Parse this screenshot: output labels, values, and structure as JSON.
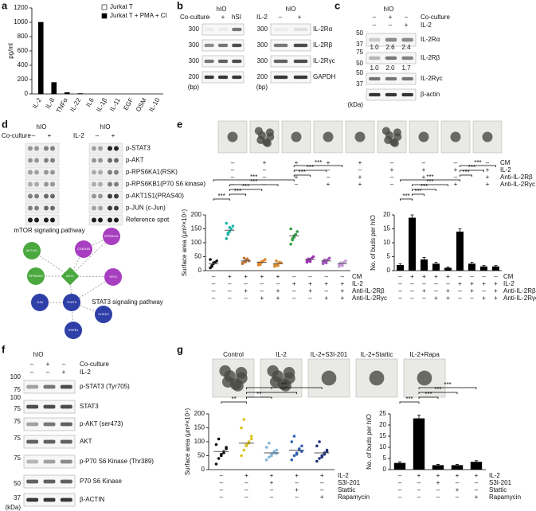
{
  "panel_labels": [
    "a",
    "b",
    "c",
    "d",
    "e",
    "f",
    "g"
  ],
  "a": {
    "type": "bar",
    "y_label": "pg/ml",
    "categories": [
      "IL-2",
      "IL-8",
      "TNFα",
      "IL-22",
      "IL6",
      "IL-1β",
      "IL-11",
      "EGF",
      "OSM",
      "IL-10"
    ],
    "series": [
      {
        "name": "Jurkat T",
        "color": "#ffffff",
        "values": [
          0,
          0,
          0,
          0,
          0,
          0,
          0,
          0,
          0,
          0
        ]
      },
      {
        "name": "Jurkat T + PMA + CI",
        "color": "#000000",
        "values": [
          1000,
          160,
          20,
          5,
          0,
          0,
          0,
          0,
          0,
          0
        ]
      }
    ],
    "ylim": [
      0,
      1200
    ],
    "yticks": [
      0,
      200,
      400,
      600,
      800,
      1000,
      1200
    ]
  },
  "b": {
    "left_header": "hIO",
    "right_header": "hIO",
    "left_row": "Co-culture",
    "left_signs": [
      "–",
      "+",
      "hSI"
    ],
    "right_row": "IL-2",
    "right_signs": [
      "–",
      "+"
    ],
    "markers": [
      "300",
      "300",
      "300",
      "200",
      "(bp)"
    ],
    "genes": [
      "IL-2Rα",
      "IL-2Rβ",
      "IL-2Rγc",
      "GAPDH"
    ]
  },
  "c": {
    "header": "hIO",
    "rows": [
      "Co-culture",
      "IL-2"
    ],
    "signs": [
      [
        "–",
        "+",
        "–"
      ],
      [
        "–",
        "–",
        "+"
      ]
    ],
    "markers": [
      "50",
      "37",
      "75",
      "50",
      "50",
      "37",
      "(kDa)"
    ],
    "proteins": [
      "IL-2Rα",
      "IL-2Rβ",
      "IL-2Rγc",
      "β-actin"
    ],
    "ratios": [
      [
        "1.0",
        "2.6",
        "2.4"
      ],
      [
        "1.0",
        "2.0",
        "1.7"
      ]
    ]
  },
  "d": {
    "headers": [
      "hIO",
      "hIO"
    ],
    "rows": [
      "Co-culture",
      "IL-2"
    ],
    "signs": [
      "–",
      "+"
    ],
    "spots": [
      "p-STAT3",
      "p-AKT",
      "p-RPS6KA1(RSK)",
      "p-RPS6KB1(P70 S6 kinase)",
      "p-AKT1S1(PRAS40)",
      "p-JUN (c-Jun)",
      "Reference spot"
    ],
    "nodes": [
      "RPS6KA1",
      "CDKN1B",
      "AKT1S1",
      "RPS6KB1",
      "AKT1",
      "YES1",
      "JUN",
      "STAT3",
      "CHEK2",
      "HSPB1"
    ],
    "pathways": [
      "mTOR signaling pathway",
      "STAT3 signaling pathway"
    ]
  },
  "e": {
    "conditions": [
      "CM",
      "IL-2",
      "Anti-IL-2Rβ",
      "Anti-IL-2Rγc"
    ],
    "signs": [
      [
        "–",
        "+",
        "+",
        "+",
        "+",
        "–",
        "–",
        "–",
        "–"
      ],
      [
        "–",
        "–",
        "–",
        "–",
        "–",
        "+",
        "+",
        "+",
        "+"
      ],
      [
        "–",
        "–",
        "+",
        "–",
        "+",
        "–",
        "+",
        "–",
        "+"
      ],
      [
        "–",
        "–",
        "–",
        "+",
        "+",
        "–",
        "–",
        "+",
        "+"
      ]
    ],
    "surface": {
      "y_label": "Surface area (μm²×10⁴)",
      "ylim": [
        0,
        200
      ],
      "yticks": [
        0,
        50,
        100,
        150,
        200
      ],
      "colors": [
        "#111111",
        "#1ab3a6",
        "#c0763a",
        "#e08a2c",
        "#d98a2a",
        "#2e9e3e",
        "#9b35b5",
        "#a356c0",
        "#c49ad6"
      ],
      "means": [
        25,
        145,
        35,
        30,
        25,
        125,
        40,
        35,
        25
      ],
      "points": [
        [
          10,
          18,
          25,
          30,
          35,
          40,
          15,
          28
        ],
        [
          115,
          130,
          140,
          150,
          160,
          170,
          135,
          155
        ],
        [
          25,
          30,
          38,
          42,
          35,
          28,
          45,
          32
        ],
        [
          20,
          25,
          30,
          35,
          40,
          28,
          22,
          33
        ],
        [
          15,
          20,
          25,
          30,
          28,
          22,
          35,
          18
        ],
        [
          95,
          110,
          120,
          130,
          140,
          150,
          115,
          125
        ],
        [
          30,
          35,
          40,
          45,
          50,
          38,
          42,
          33
        ],
        [
          25,
          30,
          35,
          40,
          45,
          32,
          38,
          28
        ],
        [
          15,
          20,
          25,
          30,
          35,
          22,
          28,
          18
        ]
      ],
      "sig": [
        [
          0,
          1,
          "***"
        ],
        [
          1,
          2,
          "***"
        ],
        [
          1,
          3,
          "***"
        ],
        [
          1,
          4,
          "***"
        ],
        [
          0,
          5,
          "***"
        ],
        [
          5,
          6,
          "***"
        ],
        [
          5,
          7,
          "***"
        ],
        [
          5,
          8,
          "***"
        ]
      ]
    },
    "buds": {
      "y_label": "No. of buds per hIO",
      "ylim": [
        0,
        20
      ],
      "yticks": [
        0,
        5,
        10,
        15,
        20
      ],
      "values": [
        2,
        19,
        4,
        2.5,
        1,
        14,
        2.5,
        1.5,
        1.5
      ],
      "errors": [
        0.5,
        1,
        0.7,
        0.5,
        0.3,
        1,
        0.5,
        0.3,
        0.3
      ],
      "sig": [
        [
          0,
          1,
          "***"
        ],
        [
          1,
          2,
          "***"
        ],
        [
          1,
          3,
          "***"
        ],
        [
          1,
          4,
          "***"
        ],
        [
          0,
          5,
          "***"
        ],
        [
          5,
          6,
          "***"
        ],
        [
          5,
          7,
          "***"
        ],
        [
          5,
          8,
          "***"
        ]
      ]
    }
  },
  "f": {
    "header": "hIO",
    "rows": [
      "Co-culture",
      "IL-2"
    ],
    "signs": [
      [
        "–",
        "+",
        "–"
      ],
      [
        "–",
        "–",
        "+"
      ]
    ],
    "markers": [
      "100",
      "75",
      "100",
      "75",
      "75",
      "75",
      "75",
      "50",
      "37",
      "(kDa)"
    ],
    "proteins": [
      "p-STAT3 (Tyr705)",
      "STAT3",
      "p-AKT (ser473)",
      "AKT",
      "p-P70 S6 Kinase (Thr389)",
      "P70 S6 Kinase",
      "β-ACTIN"
    ]
  },
  "g": {
    "images": [
      "Control",
      "IL-2",
      "IL-2+S3I-201",
      "IL-2+Stattic",
      "IL-2+Rapa"
    ],
    "conditions": [
      "IL-2",
      "S3I-201",
      "Stattic",
      "Rapamycin"
    ],
    "signs": [
      [
        "–",
        "+",
        "+",
        "+",
        "+"
      ],
      [
        "–",
        "–",
        "+",
        "–",
        "–"
      ],
      [
        "–",
        "–",
        "–",
        "+",
        "–"
      ],
      [
        "–",
        "–",
        "–",
        "–",
        "+"
      ]
    ],
    "surface": {
      "y_label": "Surface area (μm²×10⁴)",
      "ylim": [
        0,
        200
      ],
      "yticks": [
        0,
        50,
        100,
        150,
        200
      ],
      "colors": [
        "#111111",
        "#d8c21a",
        "#7fb4d8",
        "#2f5fb5",
        "#1f2f7a"
      ],
      "means": [
        65,
        95,
        60,
        70,
        60
      ],
      "points": [
        [
          20,
          40,
          55,
          65,
          75,
          90,
          110,
          50,
          60,
          80
        ],
        [
          50,
          70,
          90,
          100,
          120,
          150,
          180,
          85,
          95,
          110
        ],
        [
          35,
          45,
          55,
          60,
          70,
          80,
          95,
          50,
          65,
          58
        ],
        [
          35,
          50,
          60,
          70,
          85,
          100,
          120,
          55,
          75,
          65
        ],
        [
          30,
          40,
          50,
          60,
          70,
          85,
          100,
          45,
          55,
          65
        ]
      ],
      "sig": [
        [
          0,
          1,
          "**"
        ],
        [
          1,
          2,
          "**"
        ],
        [
          1,
          3,
          "*"
        ],
        [
          1,
          4,
          "**"
        ]
      ]
    },
    "buds": {
      "y_label": "No. of buds per hIO",
      "ylim": [
        0,
        25
      ],
      "yticks": [
        0,
        5,
        10,
        15,
        20,
        25
      ],
      "values": [
        3,
        23,
        2,
        2,
        3.5
      ],
      "errors": [
        0.5,
        1.5,
        0.3,
        0.3,
        0.5
      ],
      "sig": [
        [
          0,
          1,
          "***"
        ],
        [
          1,
          2,
          "***"
        ],
        [
          1,
          3,
          "***"
        ],
        [
          1,
          4,
          "***"
        ]
      ]
    }
  }
}
